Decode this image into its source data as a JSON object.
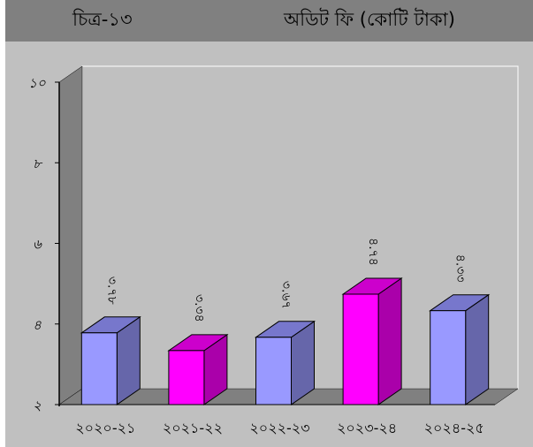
{
  "title_left": "চিত্র-১৩",
  "title_right": "অডিট ফি (কোটি টাকা)",
  "chart_data": {
    "type": "bar",
    "title": "অডিট ফি (কোটি টাকা)",
    "categories": [
      "২০২০-২১",
      "২০২১-২২",
      "২০২২-২৩",
      "২০২৩-২৪",
      "২০২৪-২৫"
    ],
    "values": [
      3.78,
      3.34,
      3.67,
      4.74,
      4.33
    ],
    "value_labels": [
      "৩.৭৮",
      "৩.৩৪",
      "৩.৬৭",
      "৪.৭৪",
      "৪.৩৩"
    ],
    "yticks": [
      2,
      4,
      6,
      8,
      10
    ],
    "ytick_labels": [
      "২",
      "৪",
      "৬",
      "৮",
      "১০"
    ],
    "ylim": [
      2,
      10
    ],
    "grid": false,
    "legend": "none",
    "colors": {
      "bar_light_front": "#9999ff",
      "bar_light_side": "#6666aa",
      "bar_light_top": "#7777cc",
      "bar_magenta_front": "#ff00ff",
      "bar_magenta_side": "#aa00aa",
      "bar_magenta_top": "#cc00cc",
      "plot_wall": "#c0c0c0",
      "side_wall": "#808080",
      "floor": "#808080",
      "header": "#808080"
    }
  }
}
